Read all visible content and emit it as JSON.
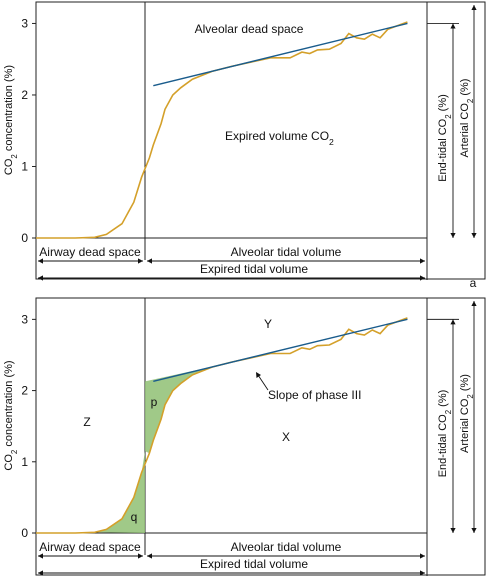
{
  "panel_label": "a",
  "colors": {
    "curve": "#d4a02a",
    "slope": "#1a5c8c",
    "shade": "#8fbf73",
    "frame": "#222222"
  },
  "chart_data": [
    {
      "type": "line",
      "ylabel_main": "CO",
      "ylabel_sub": "2",
      "ylabel_rest": " concentration (%)",
      "yticks": [
        "0",
        "1",
        "2",
        "3"
      ],
      "ylim": [
        0,
        3.3
      ],
      "xlim": [
        0,
        1
      ],
      "annotations": {
        "top": "Alveolar dead space",
        "middle_main": "Expired volume CO",
        "middle_sub": "2"
      },
      "side_labels": [
        {
          "main": "End-tidal CO",
          "sub": "2",
          "rest": " (%)"
        },
        {
          "main": "Arterial CO",
          "sub": "2",
          "rest": " (%)"
        }
      ],
      "bottom": {
        "airway": "Airway dead space",
        "alveolar": "Alveolar tidal volume",
        "expired": "Expired tidal volume"
      },
      "series": [
        {
          "values_x": [
            0,
            0.05,
            0.1,
            0.15,
            0.18,
            0.22,
            0.25,
            0.27,
            0.29,
            0.3,
            0.32,
            0.33,
            0.35,
            0.37,
            0.4,
            0.45,
            0.5,
            0.55,
            0.6,
            0.65,
            0.68,
            0.7,
            0.72,
            0.75,
            0.78,
            0.8,
            0.82,
            0.84,
            0.86,
            0.88,
            0.9,
            0.93,
            0.95
          ],
          "values_y": [
            0.0,
            0.0,
            0.0,
            0.01,
            0.05,
            0.2,
            0.5,
            0.85,
            1.12,
            1.3,
            1.6,
            1.8,
            2.0,
            2.1,
            2.22,
            2.33,
            2.4,
            2.46,
            2.52,
            2.52,
            2.6,
            2.58,
            2.63,
            2.64,
            2.72,
            2.86,
            2.8,
            2.78,
            2.85,
            2.8,
            2.92,
            2.98,
            3.02
          ]
        }
      ],
      "slope_line": {
        "x": [
          0.3,
          0.95
        ],
        "y": [
          2.13,
          3.0
        ]
      }
    },
    {
      "type": "line",
      "ylabel_main": "CO",
      "ylabel_sub": "2",
      "ylabel_rest": " concentration (%)",
      "yticks": [
        "0",
        "1",
        "2",
        "3"
      ],
      "ylim": [
        0,
        3.3
      ],
      "xlim": [
        0,
        1
      ],
      "annotations": {
        "y": "Y",
        "z": "Z",
        "x": "X",
        "p": "p",
        "q": "q",
        "slope": "Slope of phase III"
      },
      "side_labels": [
        {
          "main": "End-tidal CO",
          "sub": "2",
          "rest": " (%)"
        },
        {
          "main": "Arterial CO",
          "sub": "2",
          "rest": " (%)"
        }
      ],
      "bottom": {
        "airway": "Airway dead space",
        "alveolar": "Alveolar tidal volume",
        "expired": "Expired tidal volume"
      },
      "series": [
        {
          "values_x": [
            0,
            0.05,
            0.1,
            0.15,
            0.18,
            0.22,
            0.25,
            0.27,
            0.29,
            0.3,
            0.32,
            0.33,
            0.35,
            0.37,
            0.4,
            0.45,
            0.5,
            0.55,
            0.6,
            0.65,
            0.68,
            0.7,
            0.72,
            0.75,
            0.78,
            0.8,
            0.82,
            0.84,
            0.86,
            0.88,
            0.9,
            0.93,
            0.95
          ],
          "values_y": [
            0.0,
            0.0,
            0.0,
            0.01,
            0.05,
            0.2,
            0.5,
            0.85,
            1.12,
            1.3,
            1.6,
            1.8,
            2.0,
            2.1,
            2.22,
            2.33,
            2.4,
            2.46,
            2.52,
            2.52,
            2.6,
            2.58,
            2.63,
            2.64,
            2.72,
            2.86,
            2.8,
            2.78,
            2.85,
            2.8,
            2.92,
            2.98,
            3.02
          ]
        }
      ],
      "slope_line": {
        "x": [
          0.3,
          0.95
        ],
        "y": [
          2.13,
          3.0
        ]
      }
    }
  ]
}
